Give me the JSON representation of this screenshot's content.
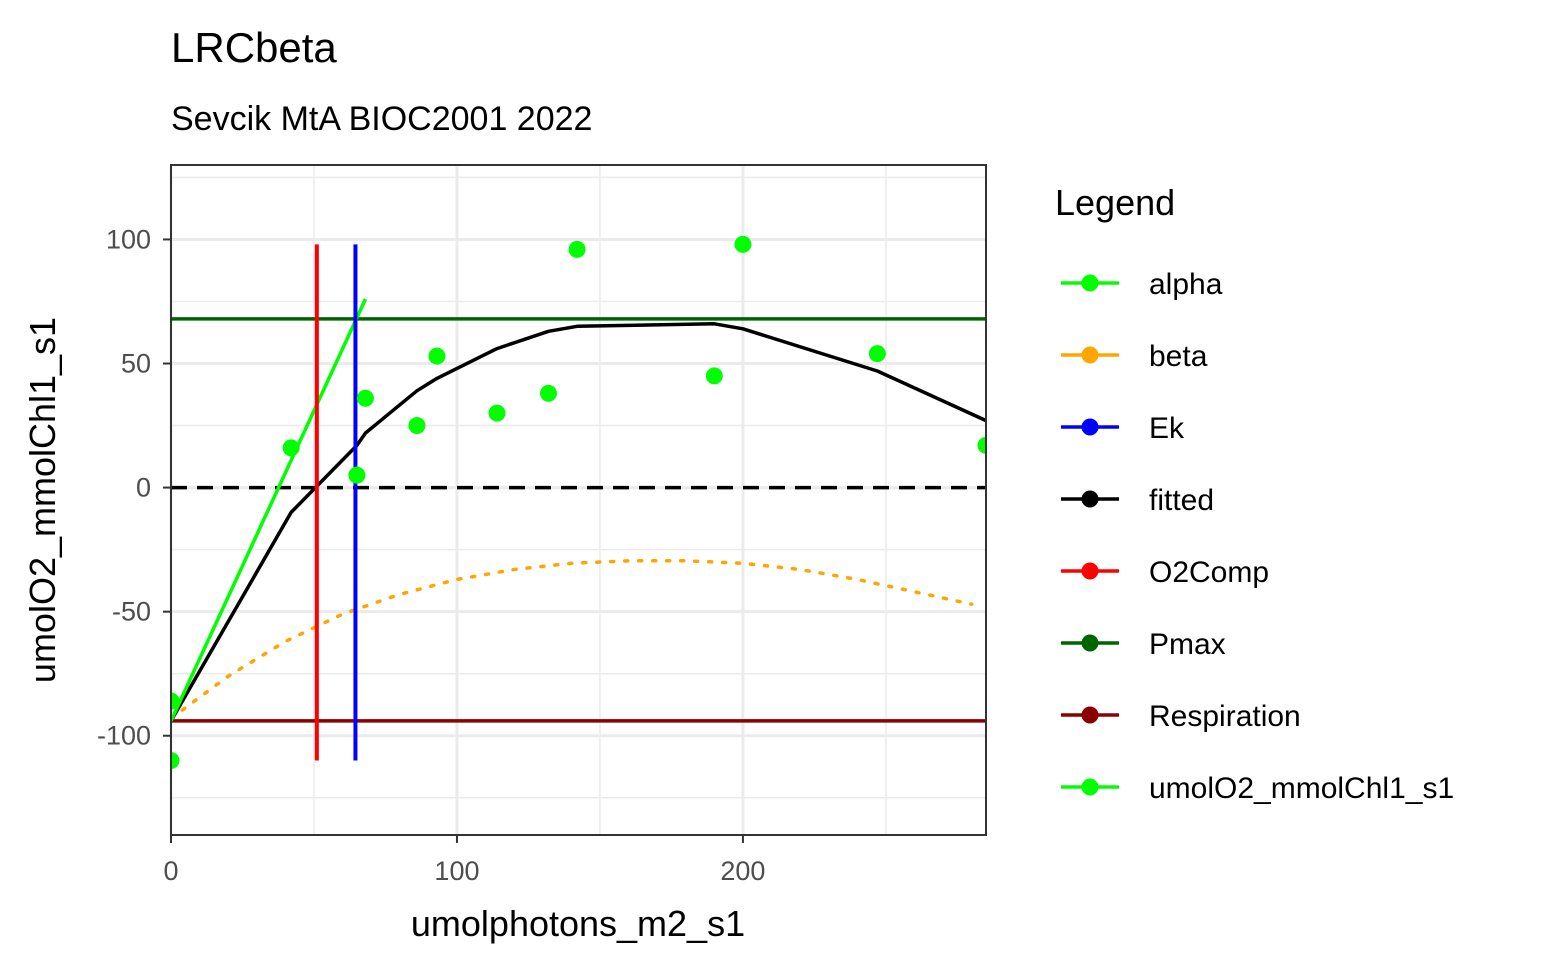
{
  "chart_data": {
    "type": "scatter",
    "title": "LRCbeta",
    "subtitle": "Sevcik MtA BIOC2001 2022",
    "xlabel": "umolphotons_m2_s1",
    "ylabel": "umolO2_mmolChl1_s1",
    "xlim": [
      0,
      285
    ],
    "ylim": [
      -140,
      130
    ],
    "x_ticks": [
      0,
      100,
      200
    ],
    "x_tick_labels": [
      "0",
      "100",
      "200"
    ],
    "y_ticks": [
      -100,
      -50,
      0,
      50,
      100
    ],
    "y_tick_labels": [
      "-100",
      "-50",
      "0",
      "50",
      "100"
    ],
    "grid": true,
    "legend_position": "right",
    "legend": {
      "title": "Legend",
      "items": [
        {
          "label": "alpha",
          "color": "#00FF00"
        },
        {
          "label": "beta",
          "color": "#FFA500"
        },
        {
          "label": "Ek",
          "color": "#0000FF"
        },
        {
          "label": "fitted",
          "color": "#000000"
        },
        {
          "label": "O2Comp",
          "color": "#FF0000"
        },
        {
          "label": "Pmax",
          "color": "#006400"
        },
        {
          "label": "Respiration",
          "color": "#8B0000"
        },
        {
          "label": "umolO2_mmolChl1_s1",
          "color": "#00FF00"
        }
      ]
    },
    "series": [
      {
        "name": "umolO2_mmolChl1_s1",
        "kind": "points",
        "color": "#00FF00",
        "x": [
          0,
          0,
          42,
          65,
          68,
          86,
          93,
          114,
          132,
          142,
          190,
          200,
          247,
          285
        ],
        "y": [
          -86,
          -110,
          16,
          5,
          36,
          25,
          53,
          30,
          38,
          96,
          45,
          98,
          54,
          17
        ]
      },
      {
        "name": "fitted",
        "kind": "line",
        "color": "#000000",
        "x": [
          0,
          42,
          65,
          68,
          86,
          93,
          114,
          132,
          142,
          190,
          200,
          247,
          285
        ],
        "y": [
          -94,
          -10,
          17,
          22,
          39,
          44,
          56,
          63,
          65,
          66,
          64,
          47,
          27
        ]
      },
      {
        "name": "beta",
        "kind": "dotted-line",
        "color": "#FFA500",
        "x": [
          0,
          20,
          40,
          60,
          80,
          100,
          120,
          140,
          160,
          180,
          200,
          220,
          240,
          260,
          280
        ],
        "y": [
          -93,
          -76,
          -62,
          -51,
          -43,
          -37,
          -33,
          -30.5,
          -29.5,
          -29.5,
          -30.5,
          -33,
          -37,
          -42,
          -47
        ]
      },
      {
        "name": "alpha",
        "kind": "line",
        "color": "#00FF00",
        "x": [
          0,
          68
        ],
        "y": [
          -94,
          76
        ]
      },
      {
        "name": "Pmax",
        "kind": "hline",
        "color": "#006400",
        "y": 68
      },
      {
        "name": "Respiration",
        "kind": "hline",
        "color": "#8B0000",
        "y": -94
      },
      {
        "name": "zero",
        "kind": "hline-dashed",
        "color": "#000000",
        "y": 0
      },
      {
        "name": "O2Comp",
        "kind": "vline",
        "color": "#FF0000",
        "x": 51,
        "y": [
          -110,
          98
        ]
      },
      {
        "name": "Ek",
        "kind": "vline",
        "color": "#0000FF",
        "x": 64.5,
        "y": [
          -110,
          98
        ]
      }
    ]
  }
}
